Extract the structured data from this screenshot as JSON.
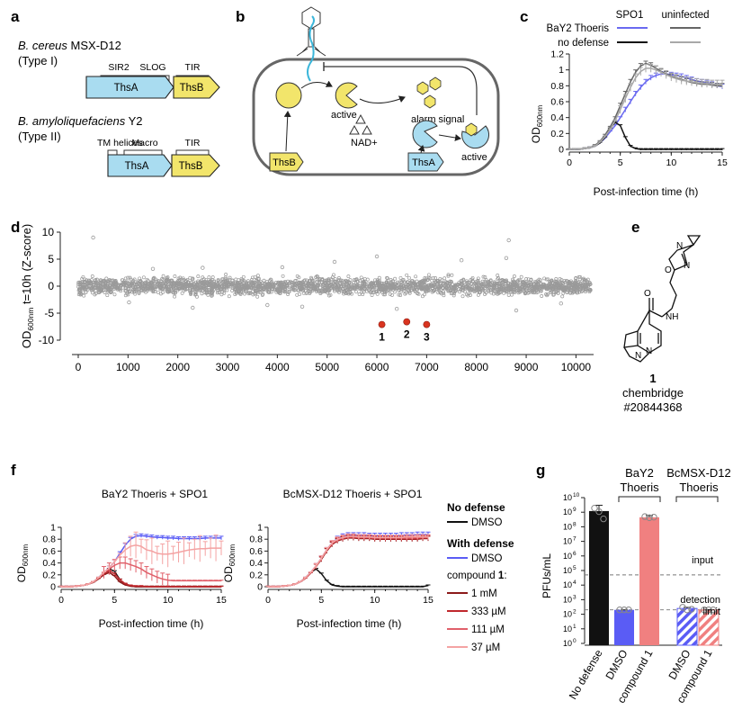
{
  "panels": {
    "a": {
      "letter": "a",
      "org1_species": "B. cereus",
      "org1_strain": " MSX-D12",
      "org1_type": "(Type I)",
      "org1_domains": [
        "SIR2",
        "SLOG",
        "TIR"
      ],
      "org2_species": "B. amyloliquefaciens",
      "org2_strain": " Y2",
      "org2_type": "(Type II)",
      "org2_domains": [
        "TM helices",
        "Macro",
        "TIR"
      ],
      "gene_a": "ThsA",
      "gene_b": "ThsB",
      "color_thsa": "#a9dcf0",
      "color_thsb": "#f2e56b"
    },
    "b": {
      "letter": "b",
      "labels": {
        "active1": "active",
        "nad": "NAD+",
        "alarm": "alarm signal",
        "active2": "active",
        "thsb": "ThsB",
        "thsa": "ThsA"
      }
    },
    "c": {
      "letter": "c",
      "legend_col1": "SPO1",
      "legend_col2": "uninfected",
      "legend_row1": "BaY2 Thoeris",
      "legend_row2": "no defense",
      "ylabel": "OD",
      "ylabel_sub": "600nm",
      "xlabel": "Post-infection time (h)"
    },
    "d": {
      "letter": "d",
      "ylabel_main": "OD",
      "ylabel_sub": "600nm",
      "ylabel_rest": " t=10h (Z-score)",
      "hits": [
        "1",
        "2",
        "3"
      ]
    },
    "e": {
      "letter": "e",
      "compound_number": "1",
      "vendor": "chembridge",
      "catalog": "#20844368"
    },
    "f": {
      "letter": "f",
      "title_left": "BaY2 Thoeris + SPO1",
      "title_right": "BcMSX-D12 Thoeris + SPO1",
      "xlabel": "Post-infection time (h)",
      "ylabel": "OD",
      "ylabel_sub": "600nm",
      "legend": {
        "no_defense_header": "No defense",
        "dmso_1": "DMSO",
        "with_defense_header": "With defense",
        "dmso_2": "DMSO",
        "compound_prefix": "compound ",
        "compound_bold": "1",
        "compound_suffix": ":",
        "conc": [
          "1 mM",
          "333 µM",
          "111 µM",
          "37 µM"
        ]
      }
    },
    "g": {
      "letter": "g",
      "ylabel": "PFUs/mL",
      "header1_line1": "BaY2",
      "header1_line2": "Thoeris",
      "header2_line1": "BcMSX-D12",
      "header2_line2": "Thoeris",
      "input_label": "input",
      "detection_line1": "detection",
      "detection_line2": "limit",
      "xlabels": [
        "No defense",
        "DMSO",
        "compound 1",
        "DMSO",
        "compound 1"
      ]
    }
  },
  "colors": {
    "no_defense": "#111111",
    "dmso_defense": "#5a5cf5",
    "bay2_thoeris": "#6a6af0",
    "uninfected_dark": "#666666",
    "uninfected_light": "#a8a8a8",
    "conc_1mM": "#8c1a1a",
    "conc_333": "#c0282d",
    "conc_111": "#e0606a",
    "conc_37": "#f4a3a3",
    "screen_points": "#9a9a9a",
    "hits": "#d9341f",
    "bar_compound": "#f08080"
  },
  "chart_data": [
    {
      "panel": "c",
      "type": "line",
      "xlabel": "Post-infection time (h)",
      "ylabel": "OD600nm",
      "xlim": [
        0,
        15
      ],
      "ylim": [
        0,
        1.2
      ],
      "xticks": [
        0,
        5,
        10,
        15
      ],
      "yticks": [
        0,
        0.2,
        0.4,
        0.6,
        0.8,
        1.0,
        1.2
      ],
      "x": [
        0,
        0.5,
        1,
        1.5,
        2,
        2.5,
        3,
        3.5,
        4,
        4.5,
        5,
        5.5,
        6,
        6.5,
        7,
        7.5,
        8,
        8.5,
        9,
        9.5,
        10,
        10.5,
        11,
        11.5,
        12,
        12.5,
        13,
        13.5,
        14,
        14.5,
        15
      ],
      "series": [
        {
          "name": "BaY2 Thoeris, SPO1",
          "color": "#6a6af0",
          "values": [
            0,
            0,
            0,
            0.01,
            0.02,
            0.04,
            0.08,
            0.14,
            0.22,
            0.3,
            0.4,
            0.5,
            0.6,
            0.7,
            0.78,
            0.85,
            0.9,
            0.93,
            0.95,
            0.95,
            0.94,
            0.93,
            0.92,
            0.9,
            0.88,
            0.86,
            0.85,
            0.84,
            0.82,
            0.8,
            0.79
          ]
        },
        {
          "name": "no defense, SPO1",
          "color": "#111111",
          "values": [
            0,
            0,
            0,
            0.01,
            0.02,
            0.04,
            0.08,
            0.15,
            0.26,
            0.34,
            0.3,
            0.15,
            0.04,
            0.01,
            0,
            0,
            0,
            0,
            0,
            0,
            0,
            0,
            0,
            0,
            0,
            0,
            0,
            0,
            0,
            0,
            0
          ]
        },
        {
          "name": "BaY2 Thoeris, uninfected",
          "color": "#666666",
          "values": [
            0,
            0,
            0,
            0.01,
            0.02,
            0.05,
            0.1,
            0.18,
            0.28,
            0.4,
            0.55,
            0.7,
            0.85,
            0.97,
            1.05,
            1.08,
            1.06,
            1.02,
            0.98,
            0.95,
            0.92,
            0.9,
            0.88,
            0.86,
            0.84,
            0.83,
            0.82,
            0.82,
            0.81,
            0.8,
            0.8
          ]
        },
        {
          "name": "no defense, uninfected",
          "color": "#a8a8a8",
          "values": [
            0,
            0,
            0,
            0.01,
            0.02,
            0.04,
            0.09,
            0.16,
            0.25,
            0.36,
            0.5,
            0.64,
            0.78,
            0.9,
            0.98,
            1.02,
            1.02,
            1.0,
            0.97,
            0.94,
            0.91,
            0.89,
            0.87,
            0.86,
            0.85,
            0.84,
            0.83,
            0.83,
            0.82,
            0.82,
            0.82
          ]
        }
      ]
    },
    {
      "panel": "d",
      "type": "scatter",
      "ylabel": "OD600nm t=10h (Z-score)",
      "xlim": [
        0,
        10300
      ],
      "ylim": [
        -10,
        10
      ],
      "xticks": [
        0,
        1000,
        2000,
        3000,
        4000,
        5000,
        6000,
        7000,
        8000,
        9000,
        10000
      ],
      "yticks": [
        -10,
        -5,
        0,
        5,
        10
      ],
      "background": {
        "count": 10300,
        "mean": 0,
        "spread": 0.8
      },
      "outliers": [
        [
          300,
          9.0
        ],
        [
          8650,
          8.5
        ],
        [
          8600,
          5.2
        ],
        [
          6000,
          5.5
        ],
        [
          7700,
          4.8
        ],
        [
          5150,
          4.5
        ],
        [
          1020,
          -3.0
        ],
        [
          4500,
          -3.8
        ],
        [
          6400,
          -4.2
        ],
        [
          3800,
          -3.5
        ],
        [
          2300,
          -4.0
        ],
        [
          8800,
          -4.5
        ],
        [
          9700,
          -3.2
        ],
        [
          1500,
          3.2
        ],
        [
          4100,
          3.5
        ],
        [
          2500,
          3.4
        ]
      ],
      "hits": [
        {
          "label": "1",
          "x": 6100,
          "y": -7.1
        },
        {
          "label": "2",
          "x": 6600,
          "y": -6.6
        },
        {
          "label": "3",
          "x": 7000,
          "y": -7.1
        }
      ]
    },
    {
      "panel": "f-left",
      "type": "line",
      "title": "BaY2 Thoeris + SPO1",
      "xlabel": "Post-infection time (h)",
      "ylabel": "OD600nm",
      "xlim": [
        0,
        15
      ],
      "ylim": [
        0,
        1.0
      ],
      "xticks": [
        0,
        5,
        10,
        15
      ],
      "yticks": [
        0,
        0.2,
        0.4,
        0.6,
        0.8,
        1.0
      ],
      "x": [
        0,
        0.5,
        1,
        1.5,
        2,
        2.5,
        3,
        3.5,
        4,
        4.5,
        5,
        5.5,
        6,
        6.5,
        7,
        7.5,
        8,
        8.5,
        9,
        9.5,
        10,
        10.5,
        11,
        11.5,
        12,
        12.5,
        13,
        13.5,
        14,
        14.5,
        15
      ],
      "series": [
        {
          "name": "No defense DMSO",
          "color": "#111111",
          "values": [
            0,
            0,
            0,
            0.01,
            0.02,
            0.04,
            0.08,
            0.15,
            0.24,
            0.3,
            0.26,
            0.12,
            0.04,
            0.01,
            0,
            0,
            0,
            0,
            0,
            0,
            0,
            0,
            0,
            0,
            0,
            0,
            0,
            0,
            0,
            0,
            0
          ]
        },
        {
          "name": "With defense DMSO",
          "color": "#5a5cf5",
          "values": [
            0,
            0,
            0,
            0.01,
            0.02,
            0.04,
            0.08,
            0.15,
            0.24,
            0.32,
            0.42,
            0.56,
            0.7,
            0.8,
            0.85,
            0.86,
            0.85,
            0.84,
            0.83,
            0.83,
            0.82,
            0.82,
            0.81,
            0.81,
            0.81,
            0.81,
            0.81,
            0.82,
            0.82,
            0.82,
            0.82
          ]
        },
        {
          "name": "1 mM",
          "color": "#8c1a1a",
          "values": [
            0,
            0,
            0,
            0.01,
            0.02,
            0.04,
            0.07,
            0.13,
            0.2,
            0.24,
            0.18,
            0.08,
            0.03,
            0.01,
            0,
            0,
            0,
            0,
            0,
            0,
            0,
            0,
            0,
            0,
            0,
            0,
            0,
            0,
            0,
            0,
            0
          ]
        },
        {
          "name": "333 µM",
          "color": "#c0282d",
          "values": [
            0,
            0,
            0,
            0.01,
            0.02,
            0.04,
            0.08,
            0.14,
            0.22,
            0.27,
            0.22,
            0.12,
            0.05,
            0.02,
            0.01,
            0.01,
            0,
            0,
            0,
            0,
            0,
            0,
            0,
            0,
            0,
            0,
            0,
            0,
            0,
            0,
            0
          ]
        },
        {
          "name": "111 µM",
          "color": "#e0606a",
          "values": [
            0,
            0,
            0,
            0.01,
            0.02,
            0.04,
            0.08,
            0.15,
            0.24,
            0.3,
            0.36,
            0.4,
            0.4,
            0.37,
            0.34,
            0.3,
            0.24,
            0.2,
            0.16,
            0.13,
            0.11,
            0.1,
            0.1,
            0.1,
            0.1,
            0.1,
            0.1,
            0.1,
            0.1,
            0.1,
            0.1
          ]
        },
        {
          "name": "37 µM",
          "color": "#f4a3a3",
          "values": [
            0,
            0,
            0,
            0.01,
            0.02,
            0.04,
            0.08,
            0.15,
            0.24,
            0.32,
            0.42,
            0.53,
            0.62,
            0.68,
            0.7,
            0.68,
            0.62,
            0.6,
            0.56,
            0.55,
            0.55,
            0.56,
            0.58,
            0.6,
            0.62,
            0.63,
            0.64,
            0.64,
            0.65,
            0.65,
            0.65
          ]
        }
      ]
    },
    {
      "panel": "f-right",
      "type": "line",
      "title": "BcMSX-D12 Thoeris + SPO1",
      "xlabel": "Post-infection time (h)",
      "ylabel": "OD600nm",
      "xlim": [
        0,
        15
      ],
      "ylim": [
        0,
        1.0
      ],
      "xticks": [
        0,
        5,
        10,
        15
      ],
      "yticks": [
        0,
        0.2,
        0.4,
        0.6,
        0.8,
        1.0
      ],
      "x": [
        0,
        0.5,
        1,
        1.5,
        2,
        2.5,
        3,
        3.5,
        4,
        4.5,
        5,
        5.5,
        6,
        6.5,
        7,
        7.5,
        8,
        8.5,
        9,
        9.5,
        10,
        10.5,
        11,
        11.5,
        12,
        12.5,
        13,
        13.5,
        14,
        14.5,
        15
      ],
      "series": [
        {
          "name": "No defense DMSO",
          "color": "#111111",
          "values": [
            0,
            0,
            0,
            0.01,
            0.02,
            0.04,
            0.08,
            0.15,
            0.24,
            0.3,
            0.22,
            0.1,
            0.03,
            0.01,
            0,
            0,
            0,
            0,
            0,
            0,
            0,
            0,
            0,
            0,
            0,
            0,
            0,
            0,
            0,
            0,
            0.02
          ]
        },
        {
          "name": "With defense DMSO",
          "color": "#5a5cf5",
          "values": [
            0,
            0,
            0,
            0.01,
            0.02,
            0.04,
            0.08,
            0.15,
            0.24,
            0.35,
            0.48,
            0.62,
            0.74,
            0.81,
            0.85,
            0.87,
            0.87,
            0.87,
            0.87,
            0.86,
            0.86,
            0.86,
            0.86,
            0.86,
            0.86,
            0.87,
            0.87,
            0.87,
            0.88,
            0.88,
            0.88
          ]
        },
        {
          "name": "1 mM",
          "color": "#8c1a1a",
          "values": [
            0,
            0,
            0,
            0.01,
            0.02,
            0.04,
            0.08,
            0.14,
            0.23,
            0.34,
            0.46,
            0.6,
            0.71,
            0.77,
            0.8,
            0.82,
            0.82,
            0.81,
            0.81,
            0.81,
            0.8,
            0.8,
            0.8,
            0.8,
            0.8,
            0.8,
            0.8,
            0.8,
            0.8,
            0.81,
            0.81
          ]
        },
        {
          "name": "333 µM",
          "color": "#c0282d",
          "values": [
            0,
            0,
            0,
            0.01,
            0.02,
            0.04,
            0.08,
            0.14,
            0.23,
            0.34,
            0.47,
            0.61,
            0.72,
            0.78,
            0.81,
            0.83,
            0.83,
            0.82,
            0.82,
            0.82,
            0.81,
            0.81,
            0.81,
            0.81,
            0.81,
            0.81,
            0.81,
            0.81,
            0.81,
            0.82,
            0.82
          ]
        },
        {
          "name": "111 µM",
          "color": "#e0606a",
          "values": [
            0,
            0,
            0,
            0.01,
            0.02,
            0.04,
            0.08,
            0.15,
            0.24,
            0.35,
            0.48,
            0.62,
            0.73,
            0.79,
            0.82,
            0.84,
            0.84,
            0.83,
            0.83,
            0.83,
            0.82,
            0.82,
            0.82,
            0.82,
            0.82,
            0.82,
            0.82,
            0.82,
            0.83,
            0.83,
            0.83
          ]
        },
        {
          "name": "37 µM",
          "color": "#f4a3a3",
          "values": [
            0,
            0,
            0,
            0.01,
            0.02,
            0.04,
            0.08,
            0.15,
            0.24,
            0.35,
            0.48,
            0.62,
            0.74,
            0.8,
            0.83,
            0.85,
            0.85,
            0.84,
            0.84,
            0.84,
            0.83,
            0.83,
            0.83,
            0.83,
            0.83,
            0.83,
            0.84,
            0.84,
            0.84,
            0.84,
            0.84
          ]
        }
      ]
    },
    {
      "panel": "g",
      "type": "bar",
      "ylabel": "PFUs/mL",
      "yscale": "log",
      "ylim": [
        1,
        10000000000.0
      ],
      "yticks_exponents": [
        0,
        1,
        2,
        3,
        4,
        5,
        6,
        7,
        8,
        9,
        10
      ],
      "categories": [
        "No defense",
        "DMSO",
        "compound 1",
        "DMSO",
        "compound 1"
      ],
      "values": [
        1200000000.0,
        200,
        450000000.0,
        250,
        200
      ],
      "errors_high": [
        3000000000.0,
        200,
        600000000.0,
        300,
        200
      ],
      "errors_low": [
        300000000.0,
        200,
        300000000.0,
        200,
        200
      ],
      "hatched": [
        false,
        false,
        false,
        true,
        true
      ],
      "colors": [
        "#111111",
        "#5a5cf5",
        "#f08080",
        "#5a5cf5",
        "#f08080"
      ],
      "replicate_points": [
        [
          1900000000.0,
          1100000000.0,
          350000000.0
        ],
        [
          200,
          200,
          200
        ],
        [
          500000000.0,
          420000000.0,
          460000000.0
        ],
        [
          300,
          200,
          220
        ],
        [
          200,
          200,
          200
        ]
      ],
      "reference_lines": [
        {
          "name": "input",
          "value": 50000
        },
        {
          "name": "detection limit",
          "value": 200
        }
      ]
    }
  ]
}
